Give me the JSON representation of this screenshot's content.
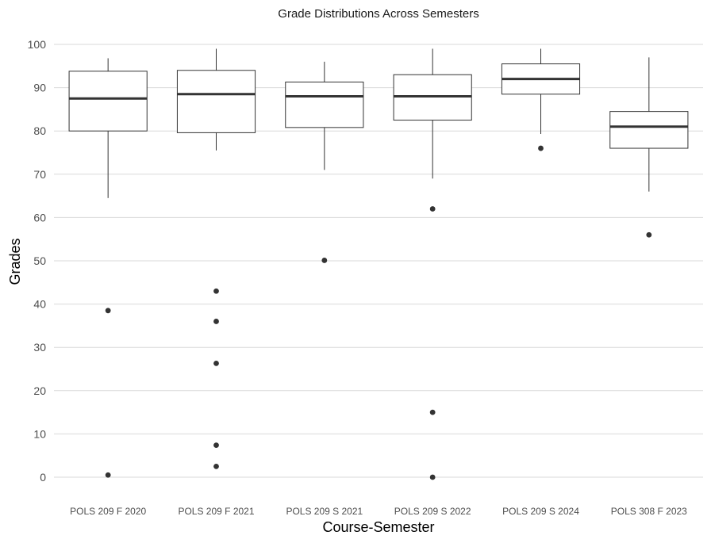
{
  "chart_data": {
    "type": "boxplot",
    "title": "Grade Distributions Across Semesters",
    "xlabel": "Course-Semester",
    "ylabel": "Grades",
    "ylim": [
      -5,
      103
    ],
    "yticks": [
      0,
      10,
      20,
      30,
      40,
      50,
      60,
      70,
      80,
      90,
      100
    ],
    "grid": true,
    "legend": "none",
    "categories": [
      "POLS 209 F 2020",
      "POLS 209 F 2021",
      "POLS 209 S 2021",
      "POLS 209 S 2022",
      "POLS 209 S 2024",
      "POLS 308 F 2023"
    ],
    "boxes": [
      {
        "category": "POLS 209 F 2020",
        "whisker_low": 64.5,
        "q1": 80,
        "median": 87.5,
        "q3": 93.8,
        "whisker_high": 96.8,
        "outliers": [
          38.5,
          0.5
        ]
      },
      {
        "category": "POLS 209 F 2021",
        "whisker_low": 75.5,
        "q1": 79.6,
        "median": 88.5,
        "q3": 94,
        "whisker_high": 99,
        "outliers": [
          43,
          36,
          26.3,
          7.4,
          2.5
        ]
      },
      {
        "category": "POLS 209 S 2021",
        "whisker_low": 71,
        "q1": 80.8,
        "median": 88,
        "q3": 91.3,
        "whisker_high": 96,
        "outliers": [
          50.1
        ]
      },
      {
        "category": "POLS 209 S 2022",
        "whisker_low": 69,
        "q1": 82.5,
        "median": 88,
        "q3": 93,
        "whisker_high": 99,
        "outliers": [
          62,
          15,
          0
        ]
      },
      {
        "category": "POLS 209 S 2024",
        "whisker_low": 79.3,
        "q1": 88.5,
        "median": 92,
        "q3": 95.5,
        "whisker_high": 99,
        "outliers": [
          76
        ]
      },
      {
        "category": "POLS 308 F 2023",
        "whisker_low": 66,
        "q1": 76,
        "median": 81,
        "q3": 84.5,
        "whisker_high": 97,
        "outliers": [
          56
        ]
      }
    ]
  }
}
